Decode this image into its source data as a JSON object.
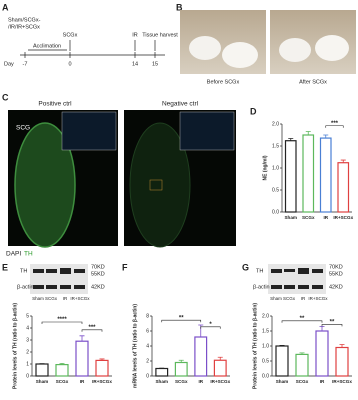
{
  "panel_labels": [
    "A",
    "B",
    "C",
    "D",
    "E",
    "F",
    "G"
  ],
  "timeline": {
    "groups": [
      "Sham/SCGx-",
      "/IR/IR+SCGx"
    ],
    "events": [
      "Acclimation",
      "SCGx",
      "IR",
      "Tissue harvest"
    ],
    "axis_label": "Day",
    "days": [
      "-7",
      "0",
      "14",
      "15"
    ]
  },
  "photos": {
    "captions": [
      "Before SCGx",
      "After SCGx"
    ]
  },
  "staining": {
    "titles": [
      "Positive ctrl",
      "Negative ctrl"
    ],
    "region": "SCG",
    "legend": [
      "DAPI",
      "TH"
    ]
  },
  "blots": [
    {
      "rows": [
        "TH",
        "β-actin"
      ],
      "sizes": [
        "70KD",
        "55KD",
        "42KD"
      ],
      "lanes": [
        "Sham",
        "SCGx",
        "IR",
        "IR+SCGx"
      ]
    },
    {
      "rows": [
        "TH",
        "β-actin"
      ],
      "sizes": [
        "70KD",
        "55KD",
        "42KD"
      ],
      "lanes": [
        "Sham",
        "SCGx",
        "IR",
        "IR+SCGx"
      ]
    }
  ],
  "chart_data": [
    {
      "type": "bar",
      "ylabel": "NE (ng/ml)",
      "categories": [
        "Sham",
        "SCGx",
        "IR",
        "IR+SCGx"
      ],
      "values": [
        1.62,
        1.75,
        1.68,
        1.12
      ],
      "errors": [
        0.05,
        0.08,
        0.07,
        0.06
      ],
      "colors": [
        "#222222",
        "#5cb85c",
        "#4a7fd4",
        "#e04040"
      ],
      "ylim": [
        0,
        2
      ],
      "yticks": [
        {
          "value": 0,
          "label": "0.0"
        },
        0.5,
        {
          "value": 1,
          "label": "1.0"
        },
        1.5,
        {
          "value": 2,
          "label": "2.0"
        }
      ],
      "annotations": [
        "***"
      ]
    },
    {
      "type": "bar",
      "ylabel": "Protein levels of TH (ratio to β-actin)",
      "categories": [
        "Sham",
        "SCGx",
        "IR",
        "IR+SCGx"
      ],
      "values": [
        1.0,
        0.95,
        2.9,
        1.3
      ],
      "errors": [
        0.03,
        0.1,
        0.45,
        0.12
      ],
      "colors": [
        "#222222",
        "#5cb85c",
        "#7b4fc9",
        "#e04040"
      ],
      "ylim": [
        0,
        5
      ],
      "yticks": [
        0,
        1,
        2,
        3,
        4,
        5
      ],
      "annotations": [
        "****",
        "***"
      ]
    },
    {
      "type": "bar",
      "ylabel": "mRNA levels of TH (ratio to β-actin)",
      "categories": [
        "Sham",
        "SCGx",
        "IR",
        "IR+SCGx"
      ],
      "values": [
        1.0,
        1.8,
        5.2,
        2.1
      ],
      "errors": [
        0.05,
        0.3,
        1.6,
        0.4
      ],
      "colors": [
        "#222222",
        "#5cb85c",
        "#7b4fc9",
        "#e04040"
      ],
      "ylim": [
        0,
        8
      ],
      "yticks": [
        0,
        2,
        4,
        6,
        8
      ],
      "annotations": [
        "**",
        "*"
      ]
    },
    {
      "type": "bar",
      "ylabel": "Protein levels of TH (ratio to β-actin)",
      "categories": [
        "Sham",
        "SCGx",
        "IR",
        "IR+SCGx"
      ],
      "values": [
        1.0,
        0.72,
        1.5,
        0.95
      ],
      "errors": [
        0.02,
        0.05,
        0.15,
        0.1
      ],
      "colors": [
        "#222222",
        "#5cb85c",
        "#7b4fc9",
        "#e04040"
      ],
      "ylim": [
        0,
        2
      ],
      "yticks": [
        {
          "value": 0,
          "label": "0.0"
        },
        0.5,
        {
          "value": 1,
          "label": "1.0"
        },
        1.5,
        {
          "value": 2,
          "label": "2.0"
        }
      ],
      "annotations": [
        "**",
        "**"
      ]
    }
  ]
}
